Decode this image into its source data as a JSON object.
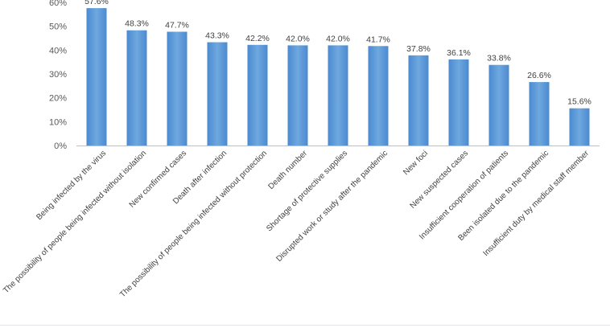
{
  "chart_data": {
    "type": "bar",
    "title": "",
    "xlabel": "",
    "ylabel": "",
    "ylim": [
      0,
      60
    ],
    "yticks": [
      "0%",
      "10%",
      "20%",
      "30%",
      "40%",
      "50%",
      "60%"
    ],
    "grid": false,
    "legend": "none",
    "bar_color": "#5b9bd5",
    "categories": [
      "Being infected by the virus",
      "The possibility of people being infected without isolation",
      "New confirmed cases",
      "Death after infection",
      "The possibility of people being infected without protection",
      "Death number",
      "Shortage of protective supplies",
      "Disrupted work or study after the pandemic",
      "New foci",
      "New suspected cases",
      "Insufficient cooperation of patients",
      "Been  isolated due to the pandemic",
      "Insufficient duty by medical staff member"
    ],
    "values": [
      57.6,
      48.3,
      47.7,
      43.3,
      42.2,
      42.0,
      42.0,
      41.7,
      37.8,
      36.1,
      33.8,
      26.6,
      15.6
    ],
    "data_labels": [
      "57.6%",
      "48.3%",
      "47.7%",
      "43.3%",
      "42.2%",
      "42.0%",
      "42.0%",
      "41.7%",
      "37.8%",
      "36.1%",
      "33.8%",
      "26.6%",
      "15.6%"
    ]
  }
}
